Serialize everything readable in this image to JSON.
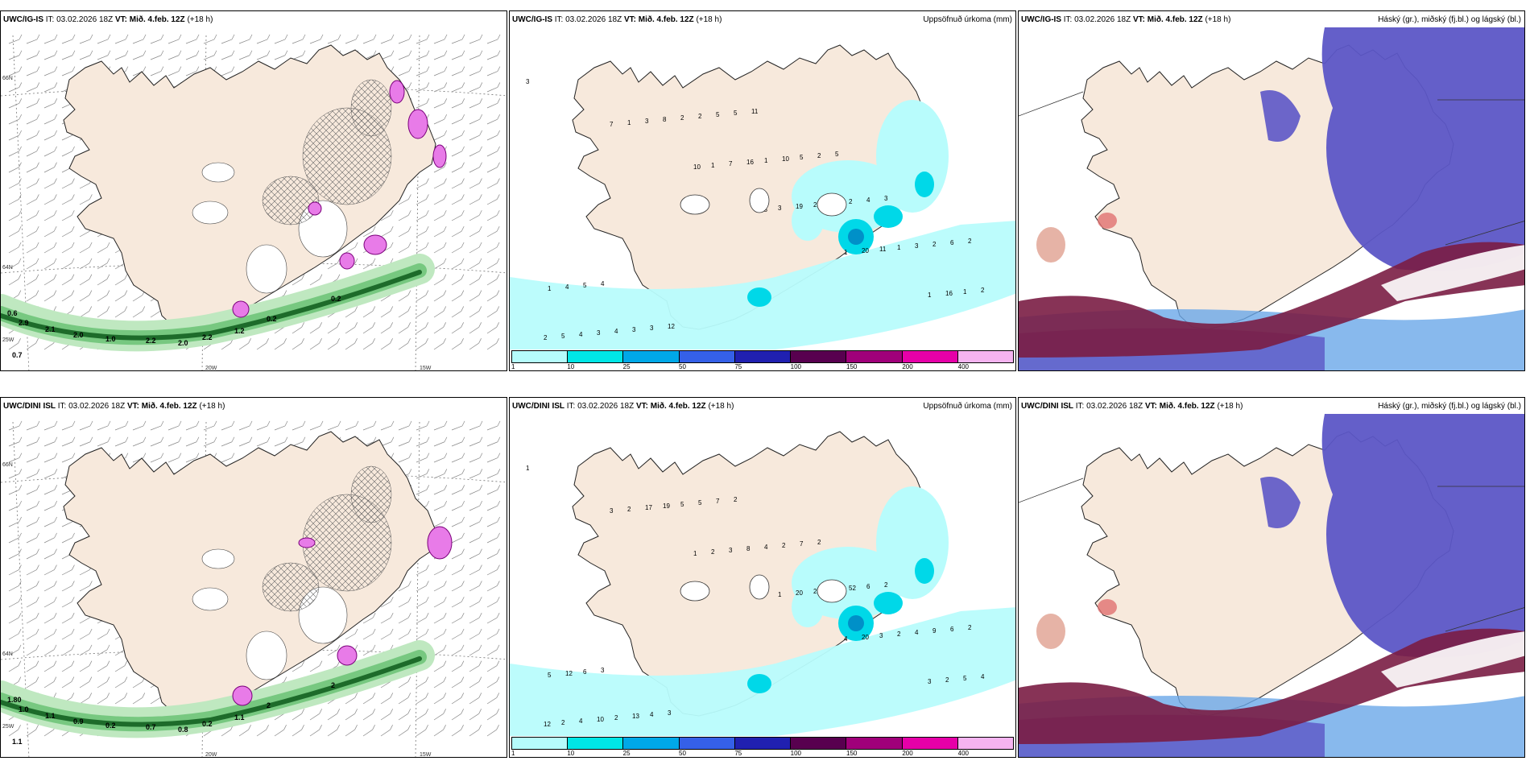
{
  "rows": [
    {
      "model": "UWC/IG-IS",
      "it_label": "IT:",
      "it_value": "03.02.2026 18Z",
      "vt_label": "VT:",
      "vt_value": "Mið. 4.feb. 12Z",
      "lead": "(+18 h)",
      "wind_axis": {
        "lat_top": "66N",
        "lat_bottom": "64N",
        "lon_left": "20W",
        "lon_right": "15W",
        "lon_corner": "25W"
      },
      "wind_labels": [
        "0.6",
        "2.9",
        "2.1",
        "2.0",
        "1.0",
        "0.7",
        "2.2",
        "2.0",
        "2.2",
        "1.2",
        "0.2",
        "0.2"
      ],
      "precip_numbers": [
        "3",
        "7",
        "10",
        "18",
        "1",
        "1",
        "2",
        "1",
        "1",
        "3",
        "20",
        "16",
        "5",
        "3",
        "7",
        "19",
        "11",
        "1",
        "4",
        "8",
        "16",
        "28",
        "1",
        "2",
        "3",
        "2",
        "1",
        "5",
        "3",
        "1",
        "4",
        "2",
        "10",
        "2",
        "2",
        "4",
        "3",
        "5",
        "5",
        "4",
        "6",
        "5",
        "3",
        "5",
        "2",
        "3",
        "2",
        "4",
        "12",
        "11",
        "5"
      ]
    },
    {
      "model": "UWC/DINI ISL",
      "it_label": "IT:",
      "it_value": "03.02.2026 18Z",
      "vt_label": "VT:",
      "vt_value": "Mið. 4.feb. 12Z",
      "lead": "(+18 h)",
      "wind_axis": {
        "lat_top": "66N",
        "lat_bottom": "64N",
        "lon_left": "20W",
        "lon_right": "15W",
        "lon_corner": "25W"
      },
      "wind_labels": [
        "1.80",
        "1.0",
        "1.1",
        "0.9",
        "0.2",
        "1.1",
        "0.7",
        "0.8",
        "0.2",
        "1.1",
        "2",
        "2"
      ],
      "precip_numbers": [
        "1",
        "3",
        "1",
        "8",
        "4",
        "3",
        "12",
        "2",
        "2",
        "1",
        "20",
        "2",
        "2",
        "17",
        "3",
        "20",
        "3",
        "5",
        "4",
        "19",
        "8",
        "28",
        "2",
        "4",
        "10",
        "5",
        "4",
        "3",
        "4",
        "5",
        "2",
        "5",
        "2",
        "52",
        "9",
        "12",
        "13",
        "7",
        "7",
        "6",
        "6",
        "6",
        "4",
        "2",
        "2",
        "2",
        "2",
        "3",
        "3"
      ]
    }
  ],
  "precip_title": "Uppsöfnuð úrkoma (mm)",
  "cloud_title": "Háský (gr.), miðský (fj.bl.) og lágský (bl.)",
  "colorbar": {
    "labels": [
      "1",
      "10",
      "25",
      "50",
      "75",
      "100",
      "150",
      "200",
      "400"
    ],
    "colors": [
      "#b5fcfc",
      "#00e6e6",
      "#00a8e8",
      "#3560e8",
      "#2020b0",
      "#58004f",
      "#a0007a",
      "#e600a8",
      "#f5b4f0"
    ]
  },
  "colors": {
    "land": "#f7e9dc",
    "precip_light": "#b8fcfc",
    "precip_mid": "#00d8e8",
    "precip_heavy": "#0090c8",
    "high_cloud": "#5c56c6",
    "mid_cloud": "#7a1d44",
    "low_cloud_blue": "#6aa8e8",
    "snow_pink": "#e87be8",
    "rain_green": "#3a9a48"
  }
}
